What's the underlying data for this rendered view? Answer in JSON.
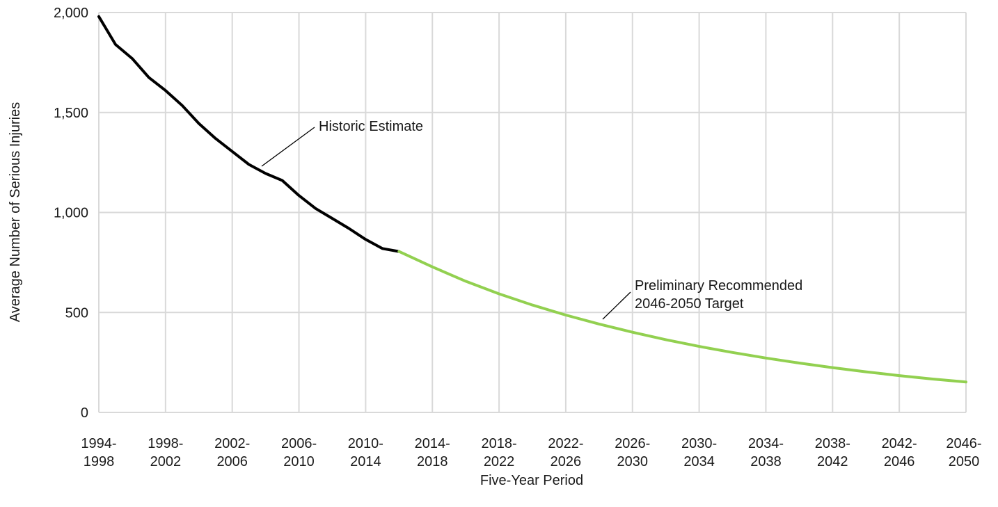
{
  "chart_data": {
    "type": "line",
    "title": "",
    "xlabel": "Five-Year Period",
    "ylabel": "Average Number of Serious Injuries",
    "ylim": [
      0,
      2000
    ],
    "yticks": [
      0,
      500,
      1000,
      1500,
      2000
    ],
    "ytick_labels": [
      "0",
      "500",
      "1,000",
      "1,500",
      "2,000"
    ],
    "grid": true,
    "xlim": [
      1994,
      2046
    ],
    "xticks": [
      1994,
      1998,
      2002,
      2006,
      2010,
      2014,
      2018,
      2022,
      2026,
      2030,
      2034,
      2038,
      2042,
      2046
    ],
    "x_tick_labels": [
      [
        "1994-",
        "1998"
      ],
      [
        "1998-",
        "2002"
      ],
      [
        "2002-",
        "2006"
      ],
      [
        "2006-",
        "2010"
      ],
      [
        "2010-",
        "2014"
      ],
      [
        "2014-",
        "2018"
      ],
      [
        "2018-",
        "2022"
      ],
      [
        "2022-",
        "2026"
      ],
      [
        "2026-",
        "2030"
      ],
      [
        "2030-",
        "2034"
      ],
      [
        "2034-",
        "2038"
      ],
      [
        "2038-",
        "2042"
      ],
      [
        "2042-",
        "2046"
      ],
      [
        "2046-",
        "2050"
      ]
    ],
    "series": [
      {
        "name": "Historic Estimate",
        "color": "#000000",
        "x": [
          1994,
          1995,
          1996,
          1997,
          1998,
          1999,
          2000,
          2001,
          2002,
          2003,
          2004,
          2005,
          2006,
          2007,
          2008,
          2009,
          2010,
          2011,
          2012
        ],
        "values": [
          1980,
          1840,
          1770,
          1675,
          1610,
          1535,
          1445,
          1370,
          1305,
          1240,
          1195,
          1160,
          1085,
          1020,
          970,
          920,
          865,
          820,
          805
        ]
      },
      {
        "name": "Preliminary Recommended 2046-2050 Target",
        "color": "#92d050",
        "x": [
          2012,
          2014,
          2016,
          2018,
          2020,
          2022,
          2024,
          2026,
          2028,
          2030,
          2032,
          2034,
          2036,
          2038,
          2040,
          2042,
          2044,
          2046
        ],
        "values": [
          805,
          728,
          656,
          593,
          537,
          487,
          442,
          401,
          364,
          330,
          300,
          272,
          247,
          224,
          203,
          184,
          167,
          152
        ]
      }
    ],
    "annotations": [
      {
        "series": 0,
        "lines": [
          "Historic Estimate"
        ]
      },
      {
        "series": 1,
        "lines": [
          "Preliminary Recommended",
          "2046-2050 Target"
        ]
      }
    ]
  }
}
